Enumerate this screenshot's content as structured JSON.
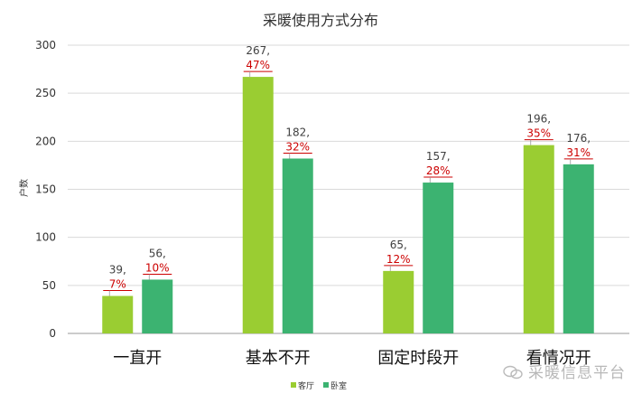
{
  "chart_data": {
    "type": "bar",
    "title": "采暖使用方式分布",
    "ylabel": "户数",
    "xlabel": "",
    "ylim": [
      0,
      300
    ],
    "yticks": [
      0,
      50,
      100,
      150,
      200,
      250,
      300
    ],
    "grid": true,
    "legend_position": "bottom",
    "categories": [
      "一直开",
      "基本不开",
      "固定时段开",
      "看情况开"
    ],
    "series": [
      {
        "name": "客厅",
        "color": "#9ACD32",
        "values": [
          39,
          267,
          65,
          196
        ],
        "labels": [
          "39,",
          "267,",
          "65,",
          "196,"
        ],
        "percents": [
          "7%",
          "47%",
          "12%",
          "35%"
        ]
      },
      {
        "name": "卧室",
        "color": "#3CB371",
        "values": [
          56,
          182,
          157,
          176
        ],
        "labels": [
          "56,",
          "182,",
          "157,",
          "176,"
        ],
        "percents": [
          "10%",
          "32%",
          "28%",
          "31%"
        ]
      }
    ]
  },
  "watermark": "采暖信息平台",
  "percent_color": "#cc0000"
}
